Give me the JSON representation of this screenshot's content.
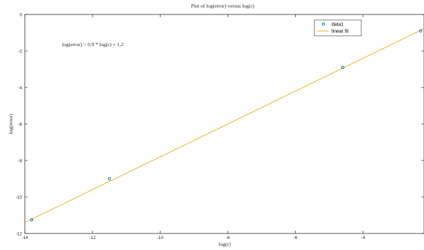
{
  "chart_data": {
    "type": "scatter",
    "title": "Plot of log(error) versus log(ε)",
    "xlabel": "log(ε)",
    "ylabel": "log(error)",
    "xlim": [
      -14,
      -2.2
    ],
    "ylim": [
      -12,
      0
    ],
    "xticks": [
      -14,
      -12,
      -10,
      -8,
      -6,
      -4
    ],
    "yticks": [
      0,
      -2,
      -4,
      -6,
      -8,
      -10,
      -12
    ],
    "xtick_labels": [
      "-14",
      "-12",
      "-10",
      "-8",
      "-6",
      "-4"
    ],
    "ytick_labels": [
      "0",
      "-2",
      "-4",
      "-6",
      "-8",
      "-10",
      "-12"
    ],
    "grid": false,
    "legend_position": "top-right",
    "annotation": "log(error) = 0.9 * log(ε) + 1.2",
    "series": [
      {
        "name": "data1",
        "kind": "markers",
        "marker": "circle",
        "color": "#0072BD",
        "x": [
          -13.8,
          -11.5,
          -4.6,
          -2.3
        ],
        "y": [
          -11.25,
          -9.0,
          -2.9,
          -0.9
        ]
      },
      {
        "name": "linear fit",
        "kind": "line",
        "color": "#EDB120",
        "slope": 0.9,
        "intercept": 1.2,
        "x": [
          -14,
          -2.2
        ],
        "y": [
          -11.4,
          -0.78
        ]
      }
    ]
  }
}
